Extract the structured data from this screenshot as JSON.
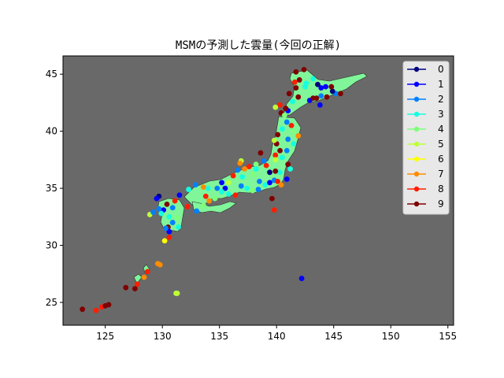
{
  "chart_data": {
    "type": "scatter",
    "title": "MSMの予測した雲量(今回の正解)",
    "xlabel": "",
    "ylabel": "",
    "xlim": [
      121.3,
      155.5
    ],
    "ylim": [
      23.0,
      46.6
    ],
    "x_ticks": [
      "125",
      "130",
      "135",
      "140",
      "145",
      "150",
      "155"
    ],
    "y_ticks": [
      "25",
      "30",
      "35",
      "40",
      "45"
    ],
    "plot_background": "#696969",
    "land_color": "#80f59a",
    "grid": false,
    "legend_position": "upper right",
    "legend": [
      "0",
      "1",
      "2",
      "3",
      "4",
      "5",
      "6",
      "7",
      "8",
      "9"
    ],
    "class_colors": [
      "#00007f",
      "#0000ff",
      "#0080ff",
      "#15ffe1",
      "#7dff7a",
      "#beff39",
      "#ffff00",
      "#ff8c00",
      "#ff1e00",
      "#7f0000"
    ],
    "points": [
      [
        142.4,
        45.4,
        9
      ],
      [
        141.7,
        45.2,
        9
      ],
      [
        142.0,
        44.5,
        9
      ],
      [
        141.9,
        43.0,
        9
      ],
      [
        141.7,
        43.8,
        9
      ],
      [
        141.6,
        44.3,
        8
      ],
      [
        142.5,
        43.9,
        3
      ],
      [
        142.9,
        42.7,
        1
      ],
      [
        143.5,
        42.9,
        9
      ],
      [
        143.2,
        42.9,
        9
      ],
      [
        143.9,
        43.1,
        2
      ],
      [
        144.4,
        43.0,
        9
      ],
      [
        144.3,
        43.9,
        1
      ],
      [
        145.2,
        43.3,
        2
      ],
      [
        145.6,
        43.3,
        9
      ],
      [
        144.9,
        43.5,
        0
      ],
      [
        143.9,
        43.8,
        1
      ],
      [
        143.6,
        44.1,
        0
      ],
      [
        142.6,
        44.2,
        3
      ],
      [
        143.2,
        44.6,
        3
      ],
      [
        141.4,
        42.6,
        3
      ],
      [
        141.0,
        41.8,
        1
      ],
      [
        140.8,
        42.0,
        9
      ],
      [
        140.4,
        41.6,
        9
      ],
      [
        140.3,
        42.3,
        8
      ],
      [
        139.9,
        42.1,
        5
      ],
      [
        140.7,
        41.4,
        4
      ],
      [
        140.9,
        40.8,
        2
      ],
      [
        141.3,
        40.5,
        8
      ],
      [
        141.5,
        40.0,
        4
      ],
      [
        140.5,
        40.2,
        3
      ],
      [
        140.1,
        39.7,
        9
      ],
      [
        141.0,
        39.3,
        2
      ],
      [
        141.9,
        39.6,
        7
      ],
      [
        141.5,
        38.9,
        3
      ],
      [
        140.9,
        38.3,
        2
      ],
      [
        140.3,
        38.3,
        9
      ],
      [
        140.0,
        38.9,
        9
      ],
      [
        139.8,
        39.2,
        5
      ],
      [
        139.9,
        37.9,
        8
      ],
      [
        140.5,
        37.7,
        3
      ],
      [
        141.0,
        37.1,
        9
      ],
      [
        139.9,
        37.5,
        5
      ],
      [
        140.3,
        36.4,
        3
      ],
      [
        139.9,
        36.5,
        9
      ],
      [
        139.4,
        36.4,
        0
      ],
      [
        139.1,
        37.0,
        8
      ],
      [
        138.9,
        37.4,
        2
      ],
      [
        138.6,
        38.1,
        9
      ],
      [
        138.2,
        37.1,
        4
      ],
      [
        138.2,
        36.7,
        3
      ],
      [
        137.6,
        36.9,
        8
      ],
      [
        137.2,
        36.7,
        7
      ],
      [
        136.9,
        37.4,
        5
      ],
      [
        136.6,
        36.6,
        2
      ],
      [
        136.2,
        36.1,
        8
      ],
      [
        135.8,
        35.5,
        5
      ],
      [
        135.5,
        35.0,
        1
      ],
      [
        135.2,
        34.7,
        3
      ],
      [
        134.8,
        35.0,
        2
      ],
      [
        134.0,
        35.0,
        3
      ],
      [
        133.6,
        35.1,
        7
      ],
      [
        132.9,
        35.3,
        2
      ],
      [
        132.3,
        34.9,
        3
      ],
      [
        131.5,
        34.4,
        1
      ],
      [
        131.1,
        33.9,
        8
      ],
      [
        130.4,
        33.6,
        9
      ],
      [
        130.9,
        33.3,
        2
      ],
      [
        130.1,
        33.1,
        1
      ],
      [
        129.9,
        32.8,
        3
      ],
      [
        129.7,
        33.2,
        2
      ],
      [
        130.6,
        32.5,
        3
      ],
      [
        130.9,
        32.0,
        2
      ],
      [
        131.4,
        31.6,
        3
      ],
      [
        130.5,
        31.6,
        9
      ],
      [
        130.6,
        31.2,
        1
      ],
      [
        130.3,
        31.5,
        2
      ],
      [
        131.3,
        32.4,
        4
      ],
      [
        132.2,
        33.4,
        8
      ],
      [
        133.0,
        33.0,
        2
      ],
      [
        133.6,
        33.5,
        4
      ],
      [
        134.1,
        33.9,
        7
      ],
      [
        134.6,
        34.1,
        4
      ],
      [
        133.8,
        34.3,
        8
      ],
      [
        135.8,
        34.5,
        3
      ],
      [
        136.4,
        34.4,
        8
      ],
      [
        136.9,
        35.2,
        2
      ],
      [
        137.4,
        35.0,
        3
      ],
      [
        137.9,
        34.8,
        4
      ],
      [
        138.4,
        34.9,
        2
      ],
      [
        139.0,
        35.3,
        3
      ],
      [
        139.4,
        35.5,
        1
      ],
      [
        139.8,
        35.7,
        2
      ],
      [
        140.1,
        35.6,
        8
      ],
      [
        140.4,
        35.3,
        7
      ],
      [
        140.9,
        35.8,
        1
      ],
      [
        141.2,
        36.7,
        3
      ],
      [
        139.6,
        34.1,
        9
      ],
      [
        139.8,
        33.1,
        8
      ],
      [
        136.8,
        37.2,
        7
      ],
      [
        135.2,
        35.5,
        1
      ],
      [
        138.0,
        36.2,
        4
      ],
      [
        138.5,
        35.6,
        2
      ],
      [
        137.0,
        36.0,
        3
      ],
      [
        129.7,
        34.3,
        0
      ],
      [
        129.5,
        34.1,
        1
      ],
      [
        128.9,
        32.7,
        5
      ],
      [
        129.2,
        32.9,
        2
      ],
      [
        130.2,
        30.4,
        6
      ],
      [
        130.6,
        30.7,
        8
      ],
      [
        129.6,
        28.4,
        7
      ],
      [
        129.8,
        28.3,
        7
      ],
      [
        128.7,
        27.7,
        8
      ],
      [
        128.4,
        27.2,
        7
      ],
      [
        127.8,
        26.6,
        8
      ],
      [
        127.6,
        26.2,
        9
      ],
      [
        126.8,
        26.3,
        9
      ],
      [
        125.3,
        24.8,
        9
      ],
      [
        124.7,
        24.6,
        8
      ],
      [
        124.2,
        24.3,
        8
      ],
      [
        123.0,
        24.4,
        9
      ],
      [
        125.0,
        24.7,
        9
      ],
      [
        131.3,
        25.8,
        5
      ],
      [
        131.2,
        25.8,
        5
      ],
      [
        142.2,
        27.1,
        1
      ],
      [
        144.8,
        43.9,
        9
      ],
      [
        143.8,
        42.3,
        1
      ],
      [
        141.1,
        43.3,
        9
      ]
    ]
  }
}
